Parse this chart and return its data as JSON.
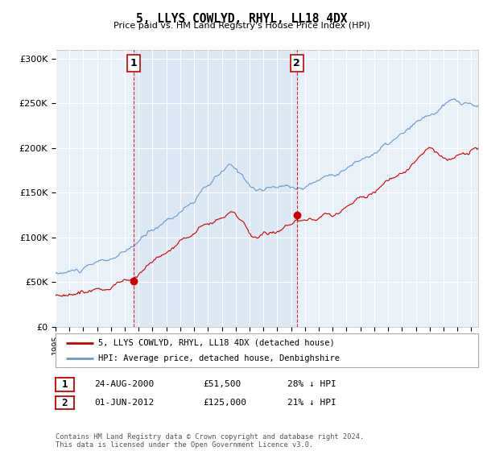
{
  "title": "5, LLYS COWLYD, RHYL, LL18 4DX",
  "subtitle": "Price paid vs. HM Land Registry's House Price Index (HPI)",
  "ylim": [
    0,
    310000
  ],
  "yticks": [
    0,
    50000,
    100000,
    150000,
    200000,
    250000,
    300000
  ],
  "ytick_labels": [
    "£0",
    "£50K",
    "£100K",
    "£150K",
    "£200K",
    "£250K",
    "£300K"
  ],
  "fig_bg": "#ffffff",
  "plot_bg": "#e8f0f8",
  "hpi_color": "#6699cc",
  "price_color": "#cc0000",
  "shade_color": "#dce8f5",
  "sale1_x": 2000.646,
  "sale1_y": 51500,
  "sale2_x": 2012.414,
  "sale2_y": 125000,
  "vline1_x": 2000.646,
  "vline2_x": 2012.414,
  "legend_line1": "5, LLYS COWLYD, RHYL, LL18 4DX (detached house)",
  "legend_line2": "HPI: Average price, detached house, Denbighshire",
  "table_row1": [
    "1",
    "24-AUG-2000",
    "£51,500",
    "28% ↓ HPI"
  ],
  "table_row2": [
    "2",
    "01-JUN-2012",
    "£125,000",
    "21% ↓ HPI"
  ],
  "footnote": "Contains HM Land Registry data © Crown copyright and database right 2024.\nThis data is licensed under the Open Government Licence v3.0.",
  "xmin": 1995,
  "xmax": 2025.5
}
